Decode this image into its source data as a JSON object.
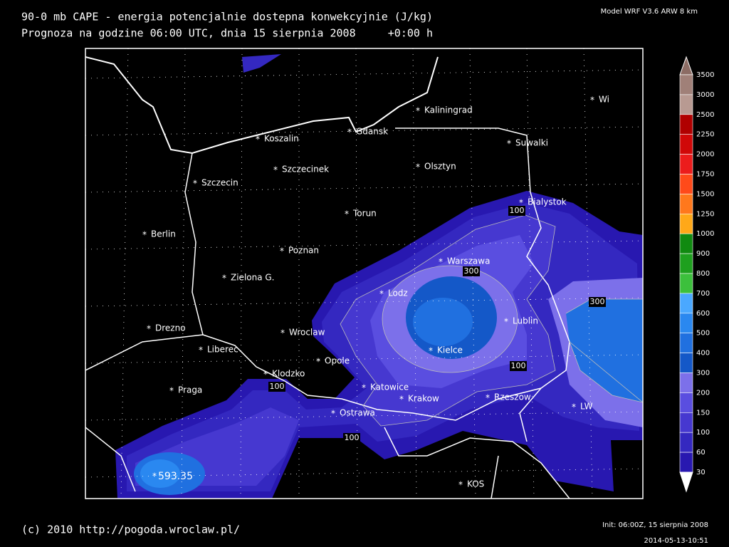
{
  "header": {
    "title": "90-0 mb CAPE - energia potencjalnie dostepna konwekcyjnie (J/kg)",
    "subtitle": "Prognoza na godzine 06:00 UTC, dnia 15 sierpnia 2008     +0:00 h",
    "model": "Model WRF V3.6 ARW 8 km"
  },
  "map": {
    "cities": [
      "Kaliningrad",
      "Gdansk",
      "Koszalin",
      "Suwalki",
      "Szczecinek",
      "Olsztyn",
      "Szczecin",
      "Bialystok",
      "Torun",
      "Berlin",
      "Poznan",
      "Warszawa",
      "Zielona G.",
      "Lodz",
      "Lublin",
      "Drezno",
      "Wroclaw",
      "Kielce",
      "Liberec",
      "Opole",
      "Klodzko",
      "Katowice",
      "Praga",
      "Krakow",
      "Rzeszow",
      "LW",
      "Ostrawa",
      "KOS",
      "Wi"
    ],
    "contour_labels": [
      "100",
      "300",
      "300",
      "100",
      "100",
      "100"
    ],
    "max_label": "593.35"
  },
  "colorbar": {
    "levels": [
      "3500",
      "3000",
      "2500",
      "2250",
      "2000",
      "1750",
      "1500",
      "1250",
      "1000",
      "900",
      "800",
      "700",
      "600",
      "500",
      "400",
      "300",
      "200",
      "150",
      "100",
      "60",
      "30"
    ],
    "colors": [
      "#8c6c64",
      "#a08078",
      "#b89a92",
      "#b00000",
      "#d00808",
      "#ec1c1c",
      "#ff4a1a",
      "#ff781c",
      "#ffa818",
      "#108a10",
      "#1ea01e",
      "#3cc03c",
      "#4aa8ff",
      "#2a88f0",
      "#2070e0",
      "#1458c8",
      "#7c70ea",
      "#5a4ee0",
      "#4638d0",
      "#3428c0",
      "#2818b0",
      "#ffffff"
    ]
  },
  "footer": {
    "copyright": "(c) 2010 http://pogoda.wroclaw.pl/",
    "init": "Init: 06:00Z, 15 sierpnia 2008",
    "timestamp": "2014-05-13-10:51"
  }
}
